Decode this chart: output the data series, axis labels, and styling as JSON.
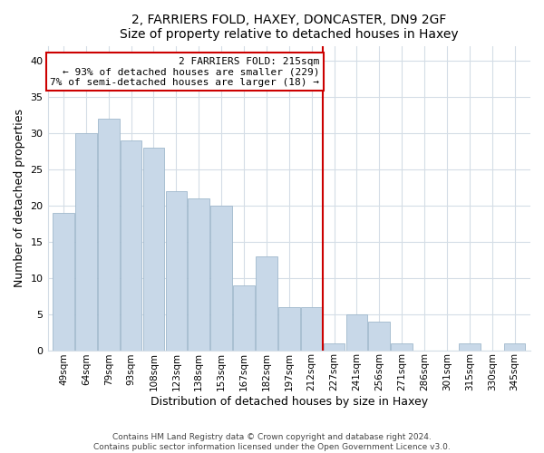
{
  "title": "2, FARRIERS FOLD, HAXEY, DONCASTER, DN9 2GF",
  "subtitle": "Size of property relative to detached houses in Haxey",
  "xlabel": "Distribution of detached houses by size in Haxey",
  "ylabel": "Number of detached properties",
  "bar_labels": [
    "49sqm",
    "64sqm",
    "79sqm",
    "93sqm",
    "108sqm",
    "123sqm",
    "138sqm",
    "153sqm",
    "167sqm",
    "182sqm",
    "197sqm",
    "212sqm",
    "227sqm",
    "241sqm",
    "256sqm",
    "271sqm",
    "286sqm",
    "301sqm",
    "315sqm",
    "330sqm",
    "345sqm"
  ],
  "bar_heights": [
    19,
    30,
    32,
    29,
    28,
    22,
    21,
    20,
    9,
    13,
    6,
    6,
    1,
    5,
    4,
    1,
    0,
    0,
    1,
    0,
    1
  ],
  "bar_color": "#c8d8e8",
  "bar_edge_color": "#a0b8cc",
  "vline_x": 11.5,
  "vline_color": "#cc0000",
  "annotation_title": "2 FARRIERS FOLD: 215sqm",
  "annotation_line1": "← 93% of detached houses are smaller (229)",
  "annotation_line2": "7% of semi-detached houses are larger (18) →",
  "annotation_box_color": "#ffffff",
  "annotation_box_edge": "#cc0000",
  "ylim": [
    0,
    42
  ],
  "yticks": [
    0,
    5,
    10,
    15,
    20,
    25,
    30,
    35,
    40
  ],
  "footer1": "Contains HM Land Registry data © Crown copyright and database right 2024.",
  "footer2": "Contains public sector information licensed under the Open Government Licence v3.0.",
  "background_color": "#ffffff",
  "grid_color": "#d4dde6"
}
